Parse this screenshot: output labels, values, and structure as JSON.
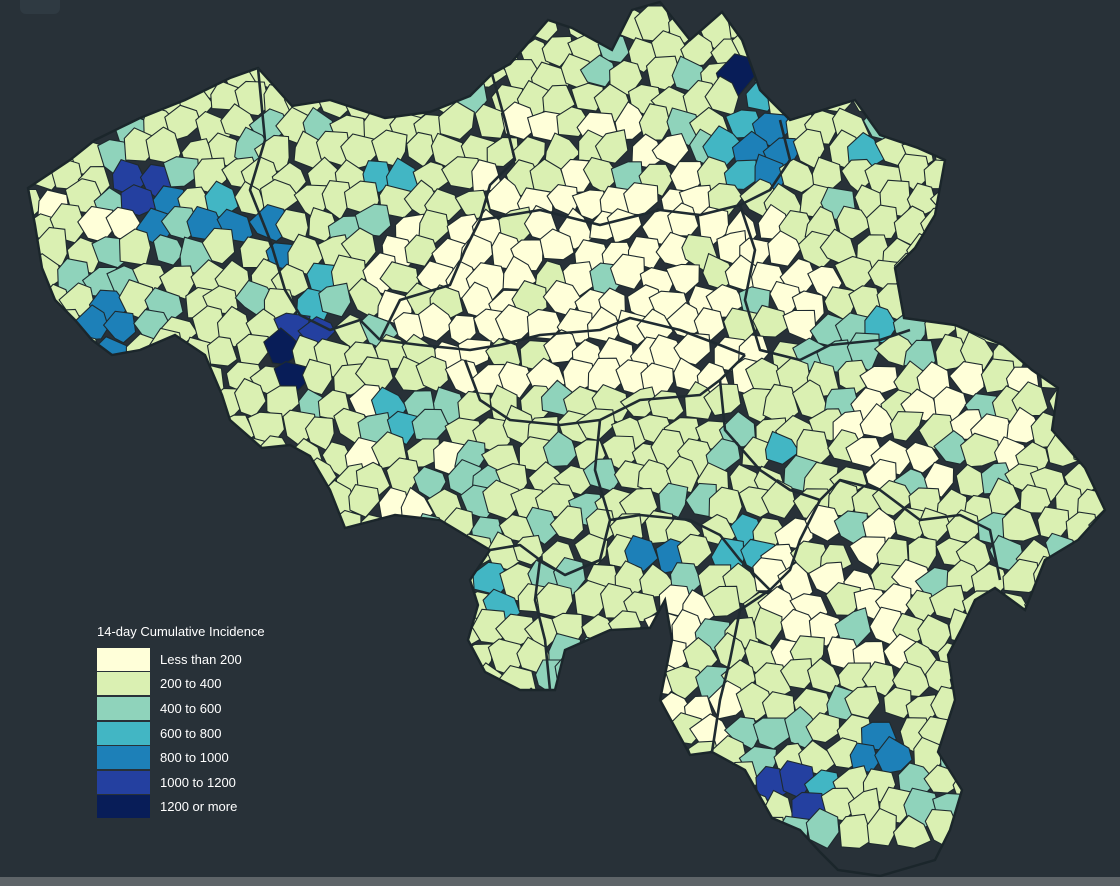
{
  "legend": {
    "title": "14-day Cumulative Incidence",
    "items": [
      {
        "label": "Less than 200",
        "color": "#ffffd9"
      },
      {
        "label": "200 to 400",
        "color": "#daf0b2"
      },
      {
        "label": "400 to 600",
        "color": "#8fd3bb"
      },
      {
        "label": "600 to 800",
        "color": "#42b6c4"
      },
      {
        "label": "800 to 1000",
        "color": "#1d80b8"
      },
      {
        "label": "1000 to 1200",
        "color": "#2440a0"
      },
      {
        "label": "1200 or more",
        "color": "#081d58"
      }
    ]
  },
  "colors": {
    "background": "#283138",
    "borders": "#1e2a2e"
  }
}
